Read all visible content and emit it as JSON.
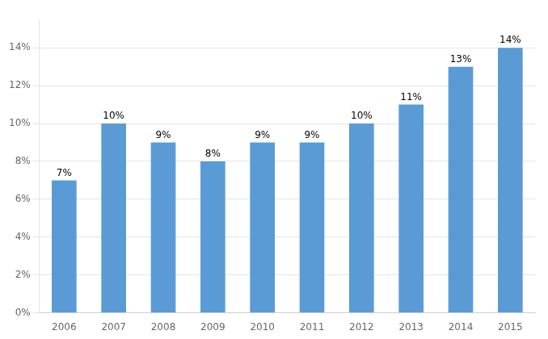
{
  "chart_data": {
    "type": "bar",
    "categories": [
      "2006",
      "2007",
      "2008",
      "2009",
      "2010",
      "2011",
      "2012",
      "2013",
      "2014",
      "2015"
    ],
    "values": [
      0.07,
      0.1,
      0.09,
      0.08,
      0.09,
      0.09,
      0.1,
      0.11,
      0.13,
      0.14
    ],
    "value_labels": [
      "7%",
      "10%",
      "9%",
      "8%",
      "9%",
      "9%",
      "10%",
      "11%",
      "13%",
      "14%"
    ],
    "data_labels": true,
    "color": "#5b9bd5",
    "ylim": [
      0,
      0.155
    ],
    "yticks": [
      {
        "value": 0,
        "label": "0%"
      },
      {
        "value": 0.02,
        "label": "2%"
      },
      {
        "value": 0.04,
        "label": "4%"
      },
      {
        "value": 0.06,
        "label": "6%"
      },
      {
        "value": 0.08,
        "label": "8%"
      },
      {
        "value": 0.1,
        "label": "10%"
      },
      {
        "value": 0.12,
        "label": "12%"
      },
      {
        "value": 0.14,
        "label": "14%"
      }
    ],
    "grid": true
  }
}
